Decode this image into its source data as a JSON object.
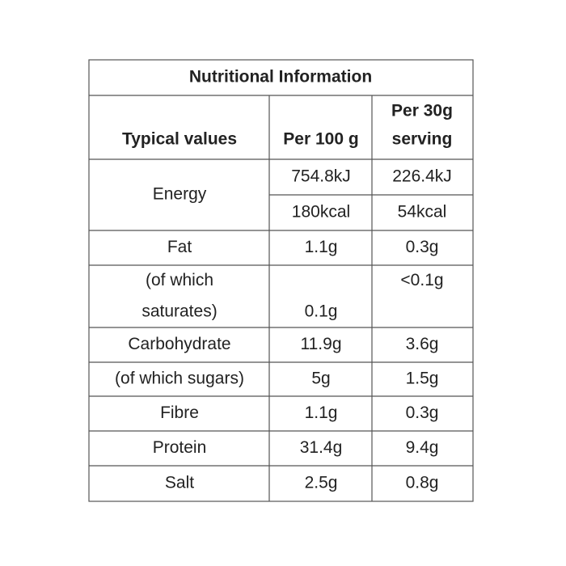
{
  "table": {
    "title": "Nutritional Information",
    "header": {
      "typical": "Typical values",
      "per_100g": "Per 100 g",
      "per_serving": [
        "Per  30g",
        "serving"
      ]
    },
    "rows": [
      {
        "label": "Energy",
        "per_100g": [
          "754.8kJ",
          "180kcal"
        ],
        "per_serving": [
          "226.4kJ",
          "54kcal"
        ]
      },
      {
        "label": "Fat",
        "per_100g": "1.1g",
        "per_serving": "0.3g"
      },
      {
        "label": [
          "(of which",
          "saturates)"
        ],
        "per_100g": "0.1g",
        "per_serving": "<0.1g"
      },
      {
        "label": "Carbohydrate",
        "per_100g": "11.9g",
        "per_serving": "3.6g"
      },
      {
        "label": "(of which sugars)",
        "per_100g": "5g",
        "per_serving": "1.5g"
      },
      {
        "label": "Fibre",
        "per_100g": "1.1g",
        "per_serving": "0.3g"
      },
      {
        "label": "Protein",
        "per_100g": "31.4g",
        "per_serving": "9.4g"
      },
      {
        "label": "Salt",
        "per_100g": "2.5g",
        "per_serving": "0.8g"
      }
    ]
  }
}
